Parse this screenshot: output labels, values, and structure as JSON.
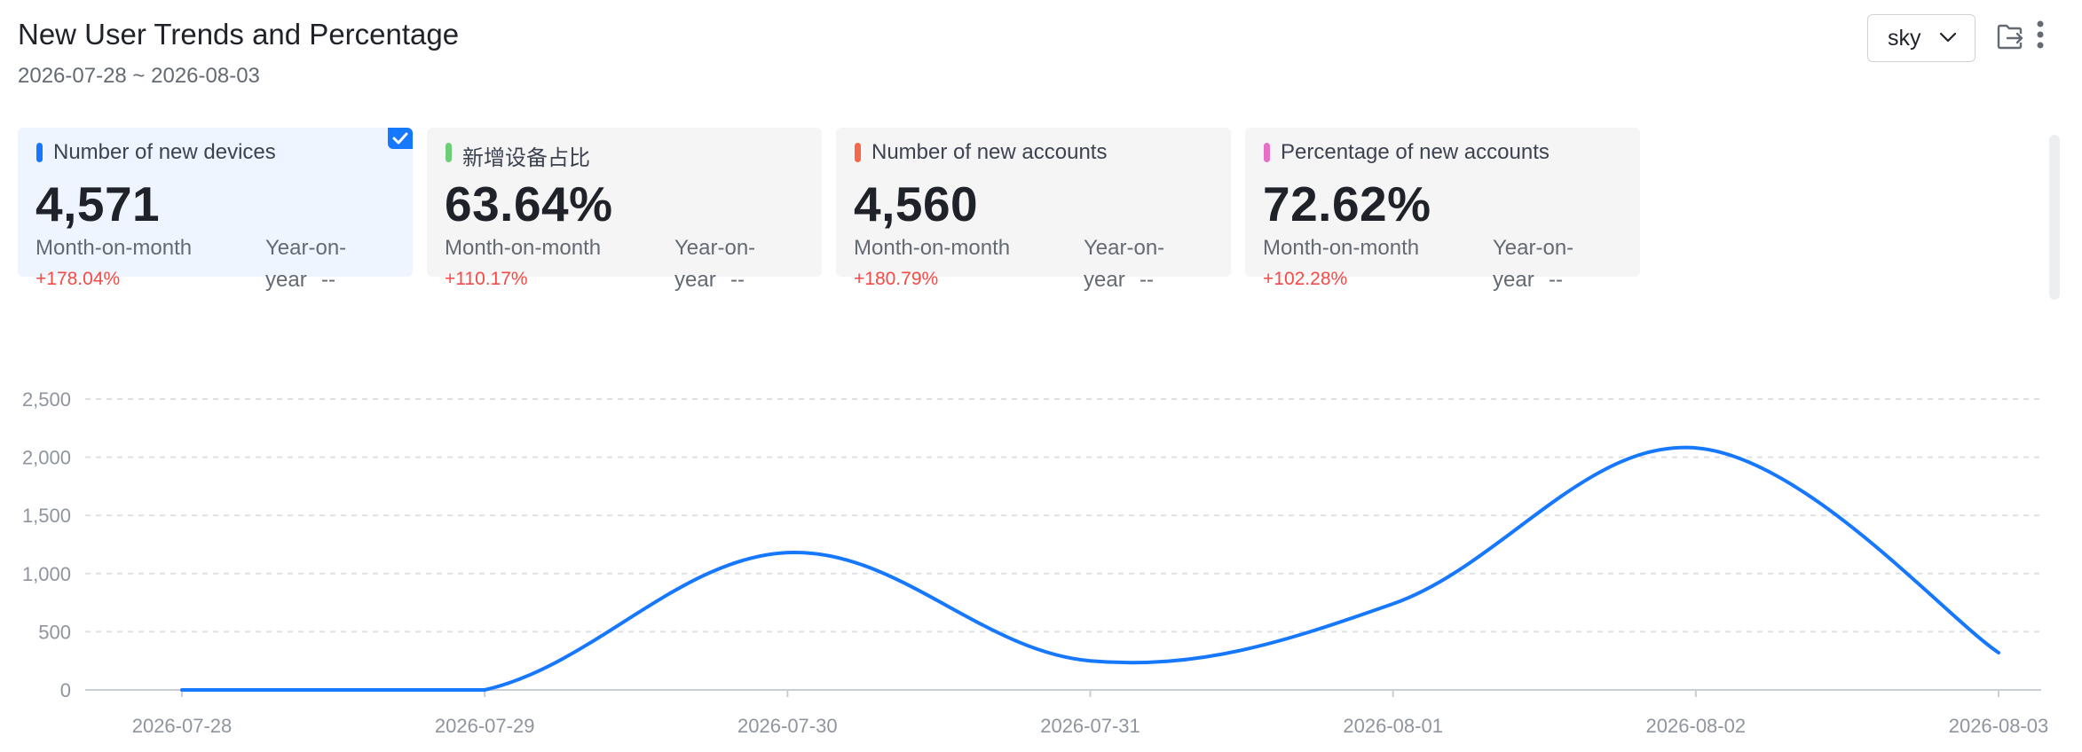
{
  "header": {
    "title": "New User Trends and Percentage",
    "date_range": "2026-07-28 ~ 2026-08-03",
    "select_value": "sky",
    "icons": [
      "export-icon",
      "more-vertical-icon",
      "chevron-down-icon"
    ]
  },
  "cards": [
    {
      "label": "Number of new devices",
      "value": "4,571",
      "mom_label": "Month-on-month",
      "mom_value": "+178.04%",
      "yoy_label_1": "Year-on-",
      "yoy_label_2": "year",
      "yoy_value": "--",
      "color": "#1677ff",
      "selected": true
    },
    {
      "label": "新增设备占比",
      "value": "63.64%",
      "mom_label": "Month-on-month",
      "mom_value": "+110.17%",
      "yoy_label_1": "Year-on-",
      "yoy_label_2": "year",
      "yoy_value": "--",
      "color": "#6ccf76",
      "selected": false
    },
    {
      "label": "Number of new accounts",
      "value": "4,560",
      "mom_label": "Month-on-month",
      "mom_value": "+180.79%",
      "yoy_label_1": "Year-on-",
      "yoy_label_2": "year",
      "yoy_value": "--",
      "color": "#f5684a",
      "selected": false
    },
    {
      "label": "Percentage of new accounts",
      "value": "72.62%",
      "mom_label": "Month-on-month",
      "mom_value": "+102.28%",
      "yoy_label_1": "Year-on-",
      "yoy_label_2": "year",
      "yoy_value": "--",
      "color": "#e86dc4",
      "selected": false
    }
  ],
  "colors": {
    "line": "#1677ff",
    "grid": "#dee0e3",
    "axis_text": "#8f959e",
    "positive": "#f54a45"
  },
  "chart_data": {
    "type": "line",
    "smooth": true,
    "categories": [
      "2026-07-28",
      "2026-07-29",
      "2026-07-30",
      "2026-07-31",
      "2026-08-01",
      "2026-08-02",
      "2026-08-03"
    ],
    "series": [
      {
        "values": [
          0,
          0,
          1180,
          250,
          740,
          2080,
          320
        ]
      }
    ],
    "yticks": [
      0,
      500,
      1000,
      1500,
      2000,
      2500
    ],
    "ytick_labels": [
      "0",
      "500",
      "1,000",
      "1,500",
      "2,000",
      "2,500"
    ],
    "ylim": [
      0,
      2500
    ],
    "grid": true,
    "legend": "none"
  }
}
